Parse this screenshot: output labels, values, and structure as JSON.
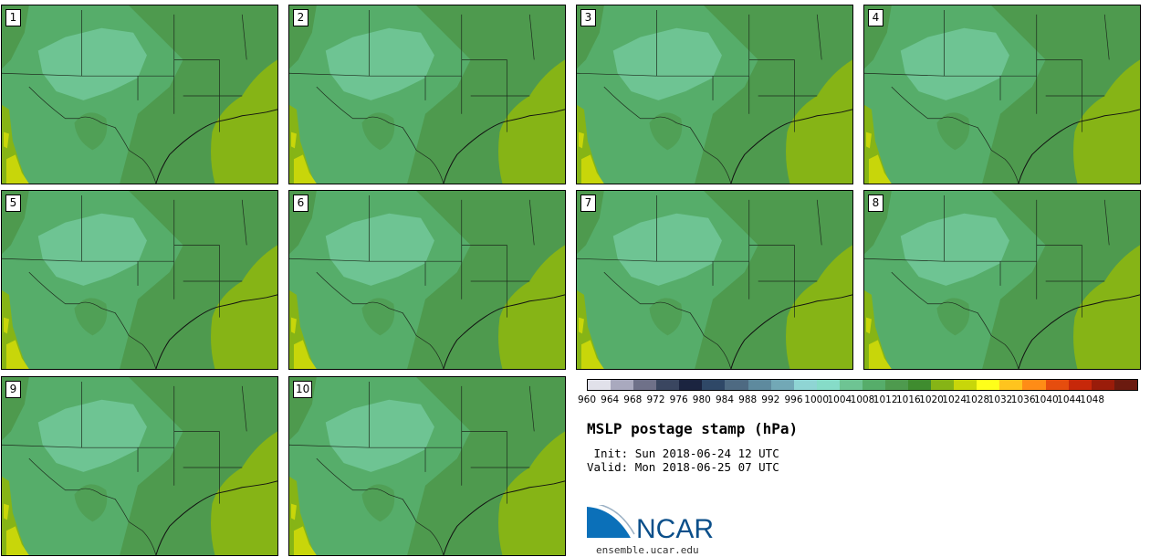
{
  "plot": {
    "title": "MSLP postage stamp (hPa)",
    "init_label": " Init:",
    "init_time": "Sun 2018-06-24 12 UTC",
    "valid_label": "Valid:",
    "valid_time": "Mon 2018-06-25 07 UTC"
  },
  "panels": [
    "1",
    "2",
    "3",
    "4",
    "5",
    "6",
    "7",
    "8",
    "9",
    "10"
  ],
  "colorbar": {
    "ticks": [
      "960",
      "964",
      "968",
      "972",
      "976",
      "980",
      "984",
      "988",
      "992",
      "996",
      "1000",
      "1004",
      "1008",
      "1012",
      "1016",
      "1020",
      "1024",
      "1028",
      "1032",
      "1036",
      "1040",
      "1044",
      "1048"
    ],
    "colors": [
      "#e1e1ea",
      "#a9a9be",
      "#6f7189",
      "#3a4660",
      "#1b2440",
      "#2f4867",
      "#4e6a82",
      "#5e8a9e",
      "#72a8b6",
      "#8fd5d4",
      "#86dcc8",
      "#6ec493",
      "#56ad6a",
      "#4e9a4e",
      "#3f8c2f",
      "#86b416",
      "#c8d60a",
      "#ffff1a",
      "#ffc41e",
      "#ff8c16",
      "#e64d0e",
      "#c7280a",
      "#9a1c0a",
      "#6b1a0f"
    ]
  },
  "logo": {
    "text": "NCAR",
    "url": "ensemble.ucar.edu"
  }
}
